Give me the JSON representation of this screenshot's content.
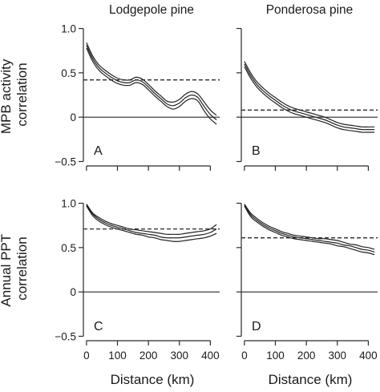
{
  "chart_data": [
    {
      "type": "line",
      "panel": "A",
      "title": "Lodgepole pine",
      "ylabel": "MPB activity correlation",
      "xlabel": "",
      "xlim": [
        -10,
        430
      ],
      "ylim": [
        -0.55,
        1.05
      ],
      "xticks": [
        0,
        100,
        200,
        300,
        400
      ],
      "yticks": [
        1.0,
        0.5,
        0,
        -0.5
      ],
      "ytick_labels": [
        "1.0",
        "0.5",
        "0",
        "−0.5"
      ],
      "reference_zero": 0,
      "reference_dashed": 0.42,
      "series": [
        {
          "x": [
            0,
            20,
            40,
            60,
            80,
            100,
            120,
            140,
            160,
            180,
            200,
            220,
            240,
            260,
            280,
            300,
            320,
            340,
            360,
            380,
            400,
            420
          ],
          "values": [
            0.84,
            0.69,
            0.59,
            0.53,
            0.48,
            0.44,
            0.42,
            0.42,
            0.45,
            0.43,
            0.37,
            0.3,
            0.24,
            0.18,
            0.17,
            0.2,
            0.26,
            0.29,
            0.26,
            0.17,
            0.08,
            0.02
          ]
        },
        {
          "x": [
            0,
            20,
            40,
            60,
            80,
            100,
            120,
            140,
            160,
            180,
            200,
            220,
            240,
            260,
            280,
            300,
            320,
            340,
            360,
            380,
            400,
            420
          ],
          "values": [
            0.81,
            0.66,
            0.56,
            0.5,
            0.45,
            0.41,
            0.39,
            0.39,
            0.42,
            0.4,
            0.34,
            0.27,
            0.21,
            0.15,
            0.13,
            0.16,
            0.22,
            0.25,
            0.22,
            0.12,
            0.03,
            -0.03
          ]
        },
        {
          "x": [
            0,
            20,
            40,
            60,
            80,
            100,
            120,
            140,
            160,
            180,
            200,
            220,
            240,
            260,
            280,
            300,
            320,
            340,
            360,
            380,
            400,
            420
          ],
          "values": [
            0.78,
            0.63,
            0.53,
            0.47,
            0.42,
            0.38,
            0.36,
            0.36,
            0.39,
            0.37,
            0.31,
            0.24,
            0.18,
            0.12,
            0.09,
            0.12,
            0.18,
            0.21,
            0.18,
            0.07,
            -0.02,
            -0.08
          ]
        }
      ]
    },
    {
      "type": "line",
      "panel": "B",
      "title": "Ponderosa pine",
      "ylabel": "",
      "xlabel": "",
      "xlim": [
        -10,
        430
      ],
      "ylim": [
        -0.55,
        1.05
      ],
      "xticks": [
        0,
        100,
        200,
        300,
        400
      ],
      "yticks": [
        1.0,
        0.5,
        0,
        -0.5
      ],
      "reference_zero": 0,
      "reference_dashed": 0.08,
      "series": [
        {
          "x": [
            0,
            20,
            40,
            60,
            80,
            100,
            120,
            140,
            160,
            180,
            200,
            220,
            240,
            260,
            280,
            300,
            320,
            340,
            360,
            380,
            400,
            420
          ],
          "values": [
            0.63,
            0.5,
            0.4,
            0.33,
            0.27,
            0.22,
            0.17,
            0.13,
            0.1,
            0.08,
            0.06,
            0.04,
            0.02,
            0.0,
            -0.03,
            -0.06,
            -0.08,
            -0.09,
            -0.1,
            -0.11,
            -0.11,
            -0.11
          ]
        },
        {
          "x": [
            0,
            20,
            40,
            60,
            80,
            100,
            120,
            140,
            160,
            180,
            200,
            220,
            240,
            260,
            280,
            300,
            320,
            340,
            360,
            380,
            400,
            420
          ],
          "values": [
            0.6,
            0.47,
            0.37,
            0.3,
            0.24,
            0.19,
            0.14,
            0.1,
            0.07,
            0.05,
            0.03,
            0.01,
            -0.01,
            -0.03,
            -0.06,
            -0.09,
            -0.11,
            -0.12,
            -0.13,
            -0.14,
            -0.14,
            -0.14
          ]
        },
        {
          "x": [
            0,
            20,
            40,
            60,
            80,
            100,
            120,
            140,
            160,
            180,
            200,
            220,
            240,
            260,
            280,
            300,
            320,
            340,
            360,
            380,
            400,
            420
          ],
          "values": [
            0.57,
            0.44,
            0.34,
            0.27,
            0.21,
            0.16,
            0.11,
            0.07,
            0.04,
            0.02,
            0.0,
            -0.02,
            -0.04,
            -0.06,
            -0.09,
            -0.12,
            -0.14,
            -0.15,
            -0.16,
            -0.17,
            -0.17,
            -0.17
          ]
        }
      ]
    },
    {
      "type": "line",
      "panel": "C",
      "title": "",
      "ylabel": "Annual PPT correlation",
      "xlabel": "Distance (km)",
      "xlim": [
        -10,
        430
      ],
      "ylim": [
        -0.55,
        1.05
      ],
      "xticks": [
        0,
        100,
        200,
        300,
        400
      ],
      "xtick_labels": [
        "0",
        "100",
        "200",
        "300",
        "400"
      ],
      "yticks": [
        1.0,
        0.5,
        0,
        -0.5
      ],
      "ytick_labels": [
        "1.0",
        "0.5",
        "0",
        "−0.5"
      ],
      "reference_zero": 0,
      "reference_dashed": 0.71,
      "series": [
        {
          "x": [
            0,
            20,
            40,
            60,
            80,
            100,
            120,
            140,
            160,
            180,
            200,
            220,
            240,
            260,
            280,
            300,
            320,
            340,
            360,
            380,
            400,
            420
          ],
          "values": [
            0.99,
            0.89,
            0.84,
            0.8,
            0.77,
            0.75,
            0.73,
            0.71,
            0.7,
            0.69,
            0.68,
            0.67,
            0.66,
            0.65,
            0.65,
            0.65,
            0.66,
            0.67,
            0.68,
            0.69,
            0.71,
            0.76
          ]
        },
        {
          "x": [
            0,
            20,
            40,
            60,
            80,
            100,
            120,
            140,
            160,
            180,
            200,
            220,
            240,
            260,
            280,
            300,
            320,
            340,
            360,
            380,
            400,
            420
          ],
          "values": [
            0.98,
            0.88,
            0.82,
            0.78,
            0.75,
            0.73,
            0.71,
            0.69,
            0.67,
            0.66,
            0.65,
            0.64,
            0.62,
            0.61,
            0.61,
            0.61,
            0.62,
            0.63,
            0.64,
            0.65,
            0.67,
            0.71
          ]
        },
        {
          "x": [
            0,
            20,
            40,
            60,
            80,
            100,
            120,
            140,
            160,
            180,
            200,
            220,
            240,
            260,
            280,
            300,
            320,
            340,
            360,
            380,
            400,
            420
          ],
          "values": [
            0.97,
            0.86,
            0.8,
            0.76,
            0.73,
            0.71,
            0.69,
            0.67,
            0.65,
            0.64,
            0.62,
            0.61,
            0.59,
            0.58,
            0.57,
            0.57,
            0.58,
            0.59,
            0.6,
            0.61,
            0.63,
            0.66
          ]
        }
      ]
    },
    {
      "type": "line",
      "panel": "D",
      "title": "",
      "ylabel": "",
      "xlabel": "Distance (km)",
      "xlim": [
        -10,
        430
      ],
      "ylim": [
        -0.55,
        1.05
      ],
      "xticks": [
        0,
        100,
        200,
        300,
        400
      ],
      "xtick_labels": [
        "0",
        "100",
        "200",
        "300",
        "400"
      ],
      "yticks": [
        1.0,
        0.5,
        0,
        -0.5
      ],
      "reference_zero": 0,
      "reference_dashed": 0.61,
      "series": [
        {
          "x": [
            0,
            20,
            40,
            60,
            80,
            100,
            120,
            140,
            160,
            180,
            200,
            220,
            240,
            260,
            280,
            300,
            320,
            340,
            360,
            380,
            400,
            420
          ],
          "values": [
            0.99,
            0.89,
            0.83,
            0.78,
            0.74,
            0.71,
            0.68,
            0.66,
            0.64,
            0.63,
            0.62,
            0.61,
            0.6,
            0.6,
            0.59,
            0.58,
            0.56,
            0.54,
            0.53,
            0.51,
            0.5,
            0.48
          ]
        },
        {
          "x": [
            0,
            20,
            40,
            60,
            80,
            100,
            120,
            140,
            160,
            180,
            200,
            220,
            240,
            260,
            280,
            300,
            320,
            340,
            360,
            380,
            400,
            420
          ],
          "values": [
            0.98,
            0.87,
            0.81,
            0.76,
            0.72,
            0.69,
            0.66,
            0.64,
            0.62,
            0.61,
            0.6,
            0.59,
            0.58,
            0.57,
            0.56,
            0.55,
            0.53,
            0.52,
            0.5,
            0.48,
            0.47,
            0.45
          ]
        },
        {
          "x": [
            0,
            20,
            40,
            60,
            80,
            100,
            120,
            140,
            160,
            180,
            200,
            220,
            240,
            260,
            280,
            300,
            320,
            340,
            360,
            380,
            400,
            420
          ],
          "values": [
            0.97,
            0.85,
            0.79,
            0.74,
            0.7,
            0.67,
            0.64,
            0.62,
            0.6,
            0.59,
            0.58,
            0.57,
            0.56,
            0.55,
            0.54,
            0.52,
            0.51,
            0.49,
            0.47,
            0.45,
            0.44,
            0.42
          ]
        }
      ]
    }
  ]
}
